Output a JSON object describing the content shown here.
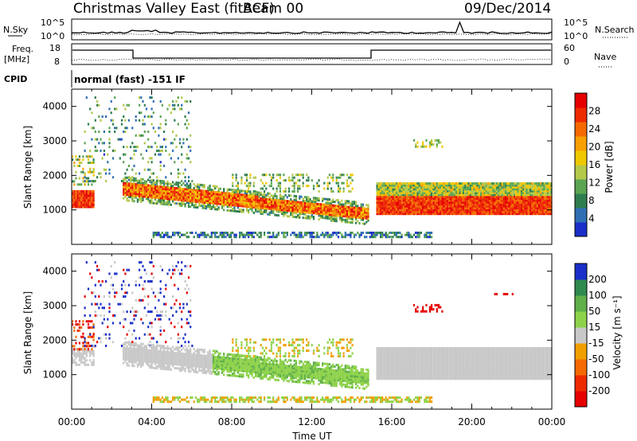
{
  "header": {
    "station": "Christmas Valley East (fitACF)",
    "beam": "Beam 00",
    "date": "09/Dec/2014"
  },
  "side_labels": {
    "nsky": "N.Sky",
    "nsearch": "N.Search",
    "freq": "Freq.",
    "freq_unit": "[MHz]",
    "nave": "Nave",
    "cpid": "CPID"
  },
  "mode_text": "normal (fast) -151 IF",
  "x_axis": {
    "label": "Time UT",
    "ticks": [
      "00:00",
      "04:00",
      "08:00",
      "12:00",
      "16:00",
      "20:00",
      "00:00"
    ]
  },
  "noise_panel": {
    "left_ticks": [
      "10^5",
      "10^0"
    ],
    "right_ticks": [
      "10^5",
      "10^0"
    ]
  },
  "freq_panel": {
    "left_ticks": [
      "18",
      "8"
    ],
    "right_ticks": [
      "60",
      "0"
    ]
  },
  "chart_data": [
    {
      "type": "heatmap",
      "title": "Power",
      "ylabel": "Slant Range [km]",
      "xlabel": "Time UT",
      "ylim": [
        0,
        4500
      ],
      "yticks": [
        "1000",
        "2000",
        "3000",
        "4000"
      ],
      "xlim_hours": [
        0,
        24
      ],
      "colorbar": {
        "label": "Power [dB]",
        "ticks": [
          "4",
          "8",
          "12",
          "16",
          "20",
          "24",
          "28"
        ],
        "colors": [
          "#1a2fc9",
          "#2f6fb4",
          "#2e7d4f",
          "#5ba552",
          "#b4c84a",
          "#f0c800",
          "#f7a000",
          "#f46a00",
          "#ee2a00",
          "#e60000"
        ]
      },
      "features": [
        {
          "name": "early-echo",
          "hours": [
            0,
            1.1
          ],
          "range_km": [
            1100,
            1500
          ],
          "level": 0.9
        },
        {
          "name": "descending-band",
          "hours": [
            2.5,
            14.8
          ],
          "range_km_start": [
            1400,
            1800
          ],
          "range_km_end": [
            700,
            1000
          ],
          "level": 0.85
        },
        {
          "name": "late-band",
          "hours": [
            15.2,
            24
          ],
          "range_km": [
            900,
            1700
          ],
          "level": 0.9
        },
        {
          "name": "ground-scatter-low",
          "hours": [
            4,
            18
          ],
          "range_km": [
            180,
            320
          ],
          "level": 0.2
        }
      ]
    },
    {
      "type": "heatmap",
      "title": "Velocity",
      "ylabel": "Slant Range [km]",
      "xlabel": "Time UT",
      "ylim": [
        0,
        4500
      ],
      "yticks": [
        "1000",
        "2000",
        "3000",
        "4000"
      ],
      "xlim_hours": [
        0,
        24
      ],
      "colorbar": {
        "label": "Velocity [m s⁻¹]",
        "ticks": [
          "200",
          "100",
          "50",
          "15",
          "-15",
          "-50",
          "-100",
          "-200"
        ],
        "colors": [
          "#1a2fc9",
          "#2e8a4f",
          "#5fb04a",
          "#8ed24a",
          "#c8c8c8",
          "#f0a000",
          "#f46a00",
          "#ee2a00",
          "#e60000"
        ]
      }
    }
  ]
}
